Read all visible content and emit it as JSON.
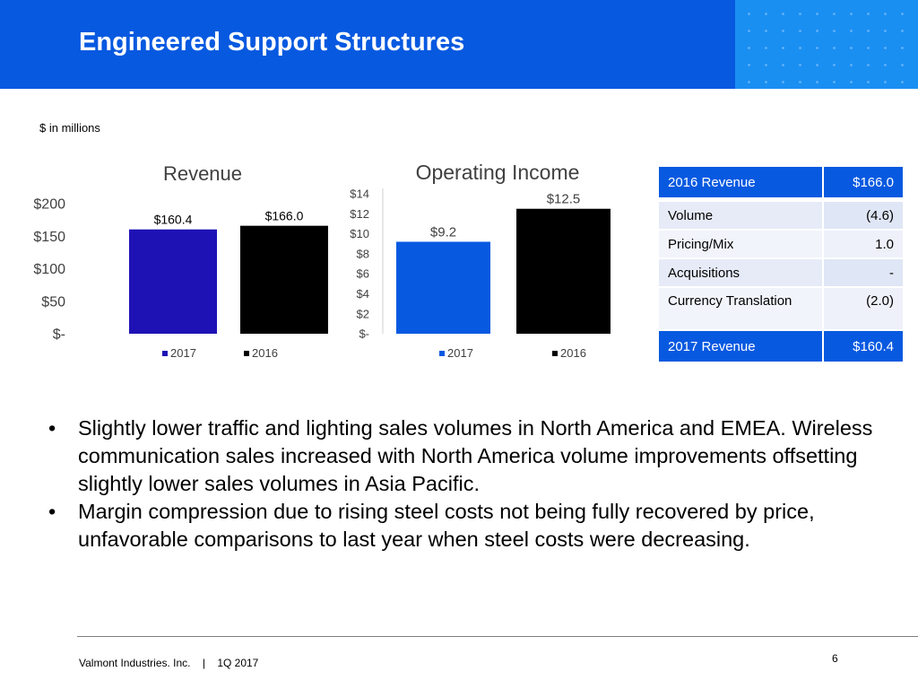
{
  "header": {
    "title": "Engineered Support Structures"
  },
  "units_note": "$ in millions",
  "chart_data": [
    {
      "type": "bar",
      "title": "Revenue",
      "categories": [
        "2017",
        "2016"
      ],
      "values": [
        160.4,
        166.0
      ],
      "value_labels": [
        "$160.4",
        "$166.0"
      ],
      "colors": [
        "#1e12b5",
        "#000000"
      ],
      "ylim": [
        0,
        200
      ],
      "yticks": [
        200,
        150,
        100,
        50,
        0
      ],
      "ytick_labels": [
        "$200",
        "$150",
        "$100",
        "$50",
        "$-"
      ],
      "legend": [
        "2017",
        "2016"
      ],
      "legend_position": "bottom",
      "grid": false
    },
    {
      "type": "bar",
      "title": "Operating Income",
      "categories": [
        "2017",
        "2016"
      ],
      "values": [
        9.2,
        12.5
      ],
      "value_labels": [
        "$9.2",
        "$12.5"
      ],
      "colors": [
        "#0759e0",
        "#000000"
      ],
      "ylim": [
        0,
        14
      ],
      "yticks": [
        14,
        12,
        10,
        8,
        6,
        4,
        2,
        0
      ],
      "ytick_labels": [
        "$14",
        "$12",
        "$10",
        "$8",
        "$6",
        "$4",
        "$2",
        "$-"
      ],
      "legend": [
        "2017",
        "2016"
      ],
      "legend_position": "bottom",
      "grid": false
    }
  ],
  "revenue_table": {
    "header": {
      "label": "2016 Revenue",
      "value": "$166.0"
    },
    "rows": [
      {
        "label": "Volume",
        "value": "(4.6)"
      },
      {
        "label": "Pricing/Mix",
        "value": "1.0"
      },
      {
        "label": "Acquisitions",
        "value": "-"
      },
      {
        "label": "Currency Translation",
        "value": "(2.0)"
      }
    ],
    "footer": {
      "label": "2017 Revenue",
      "value": "$160.4"
    }
  },
  "bullets": [
    "Slightly lower traffic and lighting sales volumes in North America and EMEA. Wireless communication sales increased with North America volume improvements offsetting slightly lower sales volumes in Asia Pacific.",
    "Margin compression due to rising steel costs not being fully recovered by price, unfavorable comparisons to last year when steel costs were decreasing."
  ],
  "bullet_symbol": "•",
  "footer": {
    "company": "Valmont Industries. Inc.",
    "separator": "|",
    "period": "1Q 2017",
    "page_number": "6"
  },
  "colors": {
    "header_bg": "#0759e0",
    "header_pattern": "#1a8ff2",
    "revenue_2017": "#1e12b5",
    "op_income_2017": "#0759e0",
    "year_2016": "#000000"
  }
}
